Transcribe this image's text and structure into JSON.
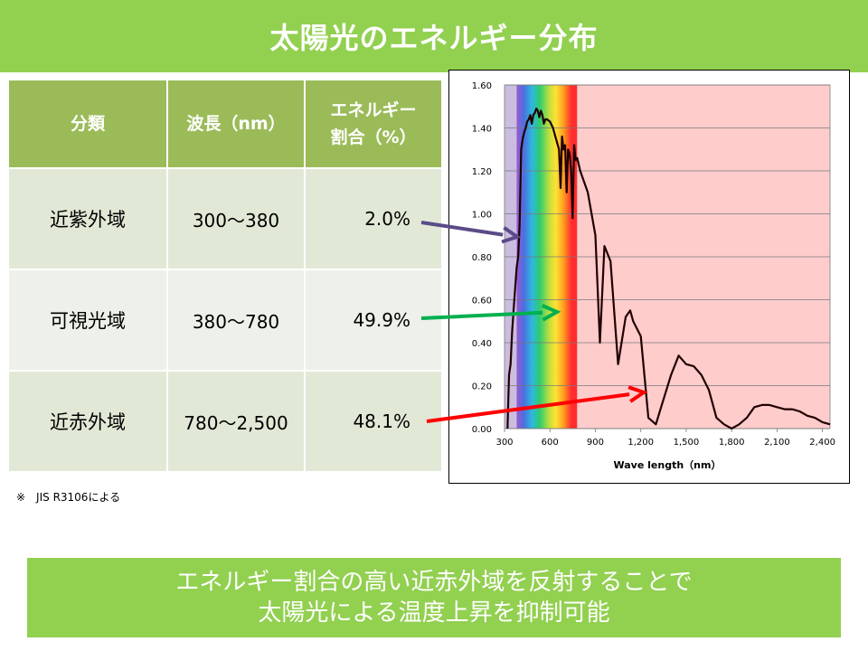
{
  "title": "太陽光のエネルギー分布",
  "table": {
    "headers": [
      "分類",
      "波長（nm）",
      "エネルギー割合（%）"
    ],
    "rows": [
      {
        "category": "近紫外域",
        "wavelength": "300～380",
        "percent": "2.0%"
      },
      {
        "category": "可視光域",
        "wavelength": "380～780",
        "percent": "49.9%"
      },
      {
        "category": "近赤外域",
        "wavelength": "780～2,500",
        "percent": "48.1%"
      }
    ]
  },
  "footnote": "※　JIS R3106による",
  "bottom": {
    "line1": "エネルギー割合の高い近赤外域を反射することで",
    "line2": "太陽光による温度上昇を抑制可能"
  },
  "colors": {
    "green": "#92d050",
    "header_green": "#9bbb59",
    "uv_band": "#cbbde0",
    "ir_band": "#ffcccc",
    "arrow_uv": "#5b4a87",
    "arrow_vis": "#00b050",
    "arrow_ir": "#ff0000",
    "curve": "#200000"
  },
  "chart_data": {
    "type": "line",
    "xlabel": "Wave length（nm）",
    "ylabel": "",
    "xlim": [
      300,
      2450
    ],
    "ylim": [
      0,
      1.6
    ],
    "xticks": [
      "300",
      "600",
      "900",
      "1,200",
      "1,500",
      "1,800",
      "2,100",
      "2,400"
    ],
    "xtick_values": [
      300,
      600,
      900,
      1200,
      1500,
      1800,
      2100,
      2400
    ],
    "yticks": [
      "0.00",
      "0.20",
      "0.40",
      "0.60",
      "0.80",
      "1.00",
      "1.20",
      "1.40",
      "1.60"
    ],
    "ytick_values": [
      0,
      0.2,
      0.4,
      0.6,
      0.8,
      1.0,
      1.2,
      1.4,
      1.6
    ],
    "bands": [
      {
        "name": "near-UV",
        "from": 300,
        "to": 380
      },
      {
        "name": "visible",
        "from": 380,
        "to": 780
      },
      {
        "name": "near-IR",
        "from": 780,
        "to": 2450
      }
    ],
    "series": [
      {
        "values_x": [
          320,
          330,
          340,
          350,
          360,
          370,
          380,
          390,
          400,
          410,
          420,
          430,
          440,
          450,
          460,
          470,
          480,
          490,
          500,
          510,
          520,
          530,
          540,
          550,
          560,
          570,
          580,
          600,
          620,
          640,
          660,
          670,
          680,
          690,
          700,
          710,
          720,
          730,
          740,
          750,
          760,
          770,
          780,
          800,
          850,
          900,
          930,
          960,
          1000,
          1050,
          1100,
          1130,
          1150,
          1200,
          1250,
          1300,
          1330,
          1400,
          1450,
          1500,
          1550,
          1600,
          1650,
          1700,
          1750,
          1800,
          1850,
          1900,
          1950,
          2000,
          2050,
          2100,
          2150,
          2200,
          2250,
          2300,
          2350,
          2400,
          2450
        ],
        "values_y": [
          0.0,
          0.25,
          0.3,
          0.45,
          0.55,
          0.65,
          0.75,
          0.8,
          0.95,
          1.3,
          1.35,
          1.38,
          1.4,
          1.43,
          1.44,
          1.46,
          1.42,
          1.46,
          1.47,
          1.49,
          1.48,
          1.45,
          1.48,
          1.46,
          1.42,
          1.44,
          1.44,
          1.43,
          1.4,
          1.35,
          1.3,
          1.12,
          1.36,
          1.3,
          1.32,
          1.1,
          1.3,
          1.28,
          1.2,
          0.98,
          1.32,
          1.25,
          1.26,
          1.2,
          1.1,
          0.9,
          0.4,
          0.85,
          0.78,
          0.3,
          0.52,
          0.55,
          0.5,
          0.43,
          0.05,
          0.02,
          0.09,
          0.25,
          0.34,
          0.3,
          0.29,
          0.25,
          0.18,
          0.05,
          0.02,
          0.0,
          0.02,
          0.05,
          0.1,
          0.11,
          0.11,
          0.1,
          0.09,
          0.09,
          0.08,
          0.06,
          0.05,
          0.03,
          0.02
        ]
      }
    ]
  }
}
